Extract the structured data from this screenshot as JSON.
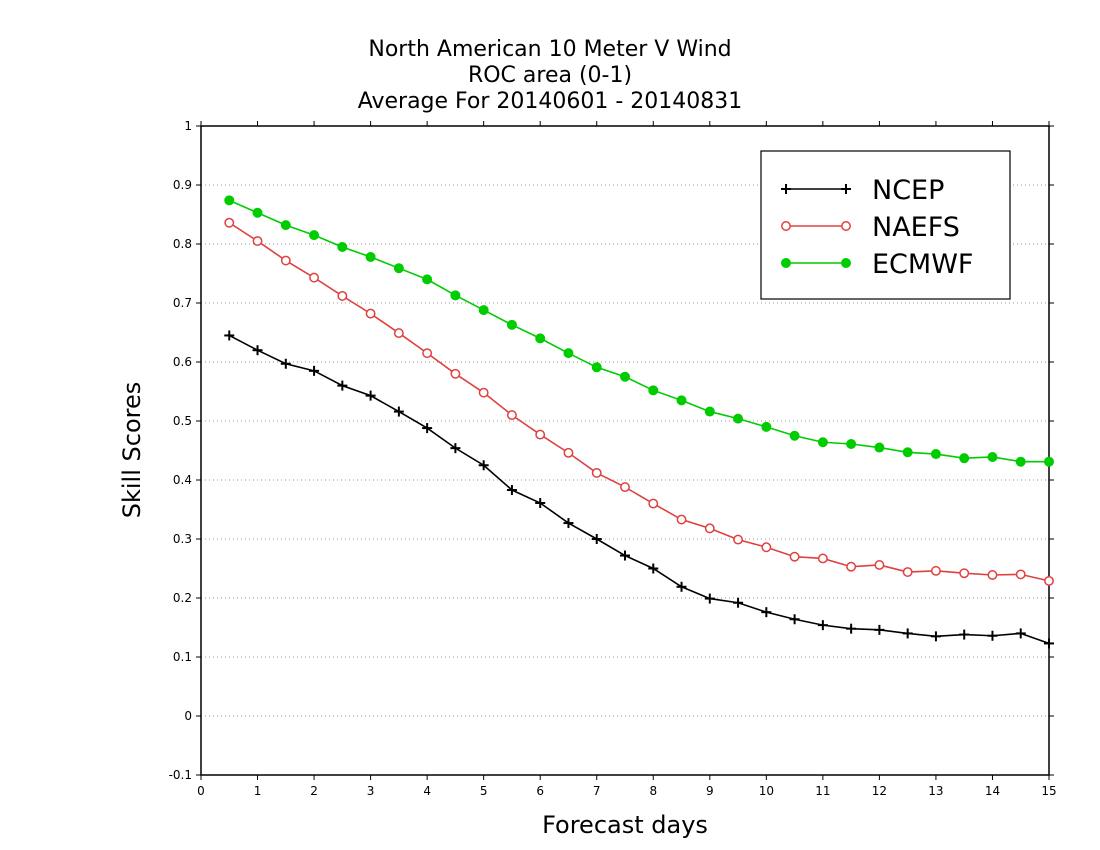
{
  "titles": {
    "line1": "North American 10 Meter V Wind",
    "line2": "ROC area (0-1)",
    "line3": "Average For 20140601 - 20140831"
  },
  "chart_data": {
    "type": "line",
    "title": "North American 10 Meter V Wind",
    "subtitle": "ROC area (0-1) / Average For 20140601 - 20140831",
    "xlabel": "Forecast days",
    "ylabel": "Skill Scores",
    "xlim": [
      0,
      15
    ],
    "ylim": [
      -0.1,
      1
    ],
    "x_ticks": [
      "0",
      "1",
      "2",
      "3",
      "4",
      "5",
      "6",
      "7",
      "8",
      "9",
      "10",
      "11",
      "12",
      "13",
      "14",
      "15"
    ],
    "y_ticks": [
      "-0.1",
      "0",
      "0.1",
      "0.2",
      "0.3",
      "0.4",
      "0.5",
      "0.6",
      "0.7",
      "0.8",
      "0.9",
      "1"
    ],
    "grid": "horizontal-dotted",
    "legend_position": "top-right",
    "x": [
      0.5,
      1,
      1.5,
      2,
      2.5,
      3,
      3.5,
      4,
      4.5,
      5,
      5.5,
      6,
      6.5,
      7,
      7.5,
      8,
      8.5,
      9,
      9.5,
      10,
      10.5,
      11,
      11.5,
      12,
      12.5,
      13,
      13.5,
      14,
      14.5,
      15
    ],
    "series": [
      {
        "name": "NCEP",
        "color": "#000000",
        "marker": "plus",
        "values": [
          0.645,
          0.62,
          0.597,
          0.585,
          0.56,
          0.543,
          0.516,
          0.488,
          0.454,
          0.425,
          0.383,
          0.361,
          0.327,
          0.3,
          0.272,
          0.25,
          0.219,
          0.199,
          0.192,
          0.176,
          0.164,
          0.154,
          0.148,
          0.146,
          0.14,
          0.135,
          0.138,
          0.136,
          0.14,
          0.123
        ]
      },
      {
        "name": "NAEFS",
        "color": "#e04040",
        "marker": "open-circle",
        "values": [
          0.836,
          0.805,
          0.772,
          0.743,
          0.712,
          0.682,
          0.649,
          0.615,
          0.58,
          0.548,
          0.51,
          0.477,
          0.446,
          0.412,
          0.388,
          0.36,
          0.333,
          0.318,
          0.299,
          0.286,
          0.27,
          0.267,
          0.253,
          0.256,
          0.244,
          0.246,
          0.242,
          0.239,
          0.24,
          0.229
        ]
      },
      {
        "name": "ECMWF",
        "color": "#00cc00",
        "marker": "filled-circle",
        "values": [
          0.874,
          0.853,
          0.832,
          0.815,
          0.795,
          0.778,
          0.759,
          0.74,
          0.713,
          0.688,
          0.663,
          0.64,
          0.615,
          0.591,
          0.575,
          0.552,
          0.535,
          0.516,
          0.504,
          0.49,
          0.475,
          0.464,
          0.461,
          0.455,
          0.447,
          0.444,
          0.437,
          0.439,
          0.431,
          0.431
        ]
      }
    ]
  }
}
